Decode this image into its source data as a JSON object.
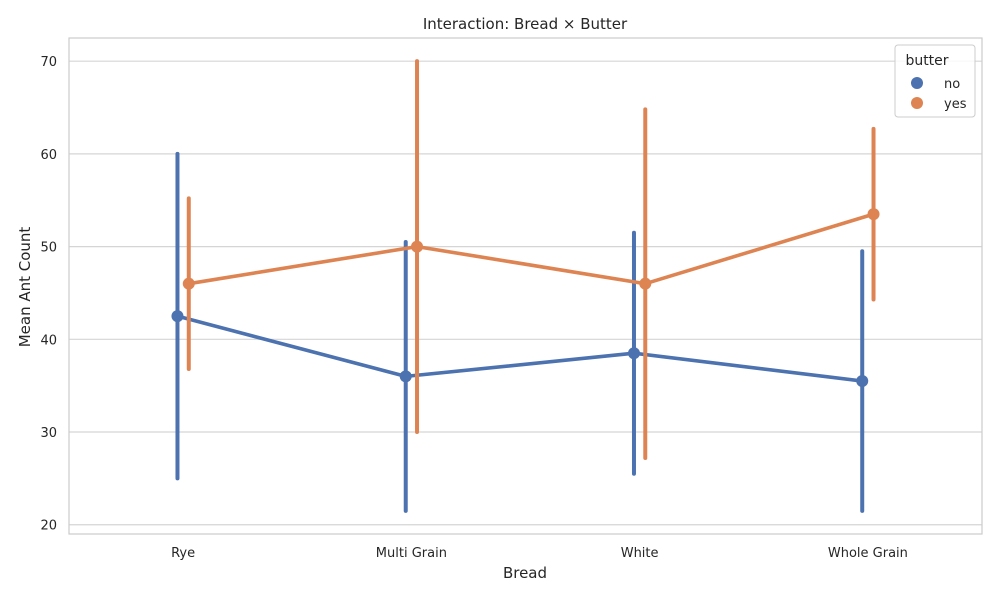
{
  "chart_data": {
    "type": "line",
    "title": "Interaction: Bread × Butter",
    "xlabel": "Bread",
    "ylabel": "Mean Ant Count",
    "categories": [
      "Rye",
      "Multi Grain",
      "White",
      "Whole Grain"
    ],
    "ylim": [
      19,
      72.5
    ],
    "yticks": [
      20,
      30,
      40,
      50,
      60,
      70
    ],
    "grid": true,
    "legend": {
      "title": "butter",
      "placement": "top-right"
    },
    "series": [
      {
        "name": "no",
        "color": "#4c72b0",
        "values": [
          42.5,
          36.0,
          38.5,
          35.5
        ],
        "ci_low": [
          25.0,
          21.5,
          25.5,
          21.5
        ],
        "ci_high": [
          60.0,
          50.5,
          51.5,
          49.5
        ]
      },
      {
        "name": "yes",
        "color": "#dd8452",
        "values": [
          46.0,
          50.0,
          46.0,
          53.5
        ],
        "ci_low": [
          36.8,
          30.0,
          27.2,
          44.3
        ],
        "ci_high": [
          55.2,
          70.0,
          64.8,
          62.7
        ]
      }
    ]
  }
}
